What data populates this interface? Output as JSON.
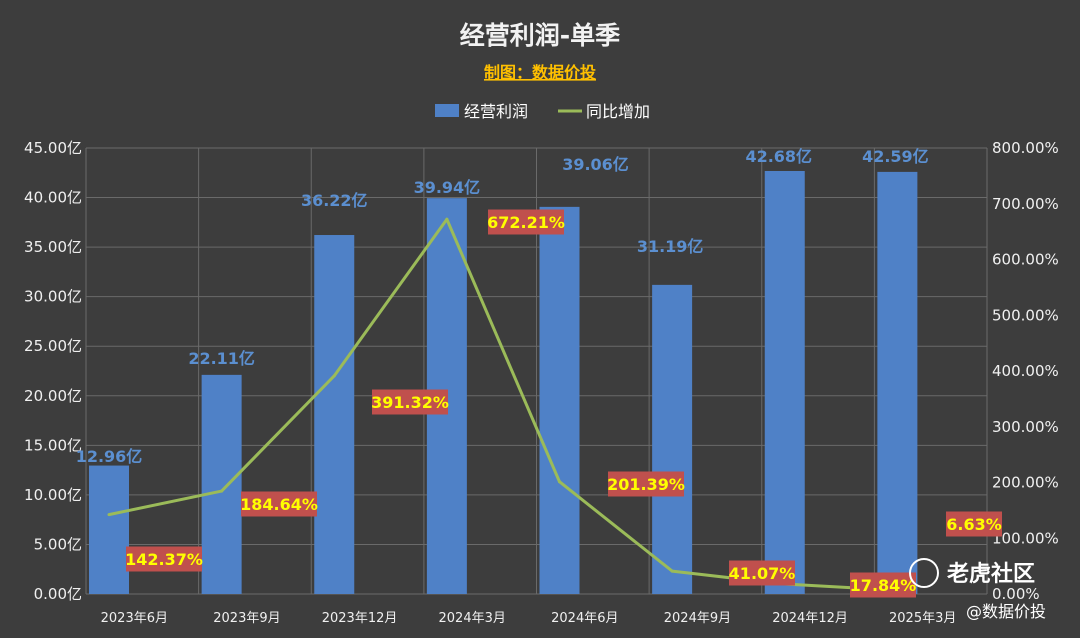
{
  "chart_data": {
    "type": "bar",
    "title": "经营利润-单季",
    "subtitle": "制图：数据价投",
    "categories": [
      "2023年6月",
      "2023年9月",
      "2023年12月",
      "2024年3月",
      "2024年6月",
      "2024年9月",
      "2024年12月",
      "2025年3月"
    ],
    "series": [
      {
        "name": "经营利润",
        "type": "bar",
        "axis": "left",
        "color": "#4f81c7",
        "values": [
          12.96,
          22.11,
          36.22,
          39.94,
          39.06,
          31.19,
          42.68,
          42.59
        ],
        "labels": [
          "12.96亿",
          "22.11亿",
          "36.22亿",
          "39.94亿",
          "39.06亿",
          "31.19亿",
          "42.68亿",
          "42.59亿"
        ]
      },
      {
        "name": "同比增加",
        "type": "line",
        "axis": "right",
        "color": "#9bbb59",
        "values": [
          142.37,
          184.64,
          391.32,
          672.21,
          201.39,
          41.07,
          17.84,
          6.63
        ],
        "labels": [
          "142.37%",
          "184.64%",
          "391.32%",
          "672.21%",
          "201.39%",
          "41.07%",
          "17.84%",
          "6.63%"
        ]
      }
    ],
    "ylim_left": [
      0,
      45
    ],
    "ylim_right": [
      0,
      800
    ],
    "yticks_left": [
      "0.00亿",
      "5.00亿",
      "10.00亿",
      "15.00亿",
      "20.00亿",
      "25.00亿",
      "30.00亿",
      "35.00亿",
      "40.00亿",
      "45.00亿"
    ],
    "yticks_right": [
      "0.00%",
      "100.00%",
      "200.00%",
      "300.00%",
      "400.00%",
      "500.00%",
      "600.00%",
      "700.00%",
      "800.00%"
    ],
    "grid": true,
    "legend_position": "top",
    "label_box_color": "#c0504d"
  },
  "watermark": {
    "brand": "老虎社区",
    "handle": "@数据价投"
  }
}
